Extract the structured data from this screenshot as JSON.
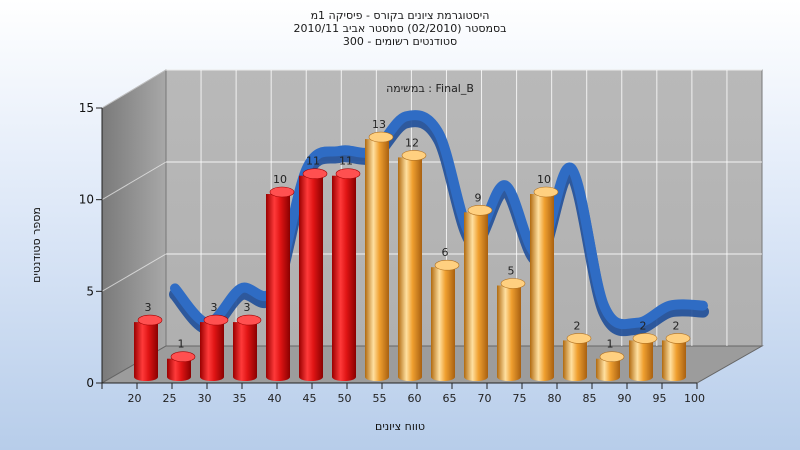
{
  "chart": {
    "title_lines": [
      "היסטוגרמת ציונים בקורס - פיסיקה 1מ",
      "בסמסטר  (02/2010)  סמסטר אביב 2010/11",
      "סטודנטים רשומים - 300"
    ],
    "annotation": "Final_B : במשימה",
    "xlabel": "טווח ציונים",
    "ylabel": "מספר סטודנטים"
  },
  "chart_data": {
    "type": "bar",
    "categories": [
      "20",
      "25",
      "30",
      "35",
      "40",
      "45",
      "50",
      "55",
      "60",
      "65",
      "70",
      "75",
      "80",
      "85",
      "90",
      "95",
      "100"
    ],
    "series": [
      {
        "values": [
          3,
          1,
          3,
          3,
          10,
          11,
          11,
          13,
          12,
          6,
          9,
          5,
          10,
          2,
          1,
          2,
          2
        ]
      }
    ],
    "bar_colors": [
      "red",
      "red",
      "red",
      "red",
      "red",
      "red",
      "red",
      "orange",
      "orange",
      "orange",
      "orange",
      "orange",
      "orange",
      "orange",
      "orange",
      "orange",
      "orange"
    ],
    "y_ticks": [
      0,
      5,
      10,
      15
    ],
    "ylim": [
      0,
      15
    ],
    "grid": true,
    "trend_line": {
      "type": "smoothed line",
      "color": "#2f6cc4"
    },
    "colors": {
      "red": "#e01515",
      "orange": "#f0a030",
      "wall": "#8a8a8a",
      "floor": "#9a9a9a",
      "trend": "#2f6cc4"
    }
  }
}
